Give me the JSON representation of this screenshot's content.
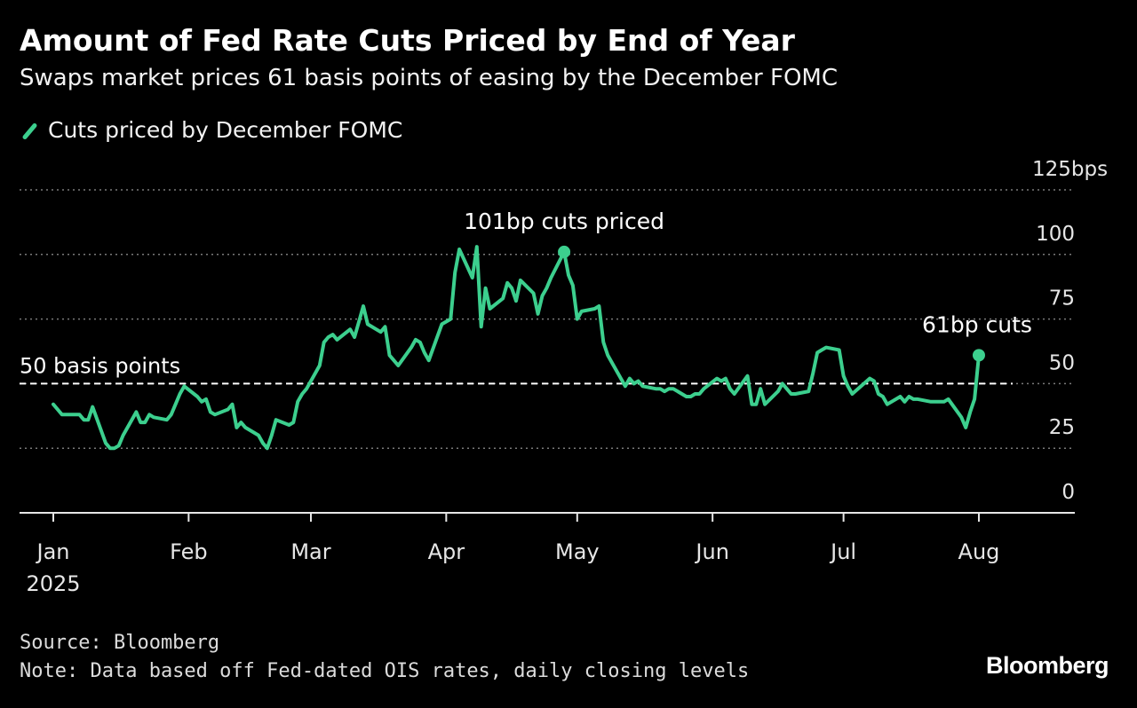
{
  "header": {
    "title": "Amount of Fed Rate Cuts Priced by End of Year",
    "subtitle": "Swaps market prices 61 basis points of easing by the December FOMC"
  },
  "legend": {
    "label": "Cuts priced by December FOMC"
  },
  "colors": {
    "background": "#000000",
    "series": "#3ccf8e",
    "grid": "#7a7a7a",
    "reference": "#ffffff",
    "text": "#ffffff"
  },
  "chart_data": {
    "type": "line",
    "x_axis": {
      "ticks": [
        "2025-01-01",
        "2025-02-01",
        "2025-03-01",
        "2025-04-01",
        "2025-05-01",
        "2025-06-01",
        "2025-07-01",
        "2025-08-01"
      ],
      "tick_labels": [
        "Jan",
        "Feb",
        "Mar",
        "Apr",
        "May",
        "Jun",
        "Jul",
        "Aug"
      ],
      "year_label": "2025",
      "range": [
        "2025-01-01",
        "2025-08-25"
      ]
    },
    "y_axis": {
      "ticks": [
        0,
        25,
        50,
        75,
        100,
        125
      ],
      "tick_labels": [
        "0",
        "25",
        "50",
        "75",
        "100",
        "125bps"
      ],
      "range": [
        0,
        125
      ],
      "grid": "dotted"
    },
    "reference_line": {
      "value": 50,
      "label": "50 basis points",
      "style": "dashed"
    },
    "annotations": [
      {
        "text": "101bp cuts priced",
        "date": "2025-04-28",
        "value": 101
      },
      {
        "text": "61bp cuts",
        "date": "2025-08-01",
        "value": 61
      }
    ],
    "series": [
      {
        "name": "Cuts priced by December FOMC",
        "points": [
          [
            "2025-01-01",
            42
          ],
          [
            "2025-01-02",
            40
          ],
          [
            "2025-01-03",
            38
          ],
          [
            "2025-01-06",
            38
          ],
          [
            "2025-01-07",
            38
          ],
          [
            "2025-01-08",
            36
          ],
          [
            "2025-01-09",
            36
          ],
          [
            "2025-01-10",
            41
          ],
          [
            "2025-01-13",
            27
          ],
          [
            "2025-01-14",
            25
          ],
          [
            "2025-01-15",
            25
          ],
          [
            "2025-01-16",
            26
          ],
          [
            "2025-01-17",
            30
          ],
          [
            "2025-01-20",
            39
          ],
          [
            "2025-01-21",
            35
          ],
          [
            "2025-01-22",
            35
          ],
          [
            "2025-01-23",
            38
          ],
          [
            "2025-01-24",
            37
          ],
          [
            "2025-01-27",
            36
          ],
          [
            "2025-01-28",
            38
          ],
          [
            "2025-01-29",
            42
          ],
          [
            "2025-01-30",
            46
          ],
          [
            "2025-01-31",
            49
          ],
          [
            "2025-02-03",
            45
          ],
          [
            "2025-02-04",
            43
          ],
          [
            "2025-02-05",
            44
          ],
          [
            "2025-02-06",
            39
          ],
          [
            "2025-02-07",
            38
          ],
          [
            "2025-02-10",
            40
          ],
          [
            "2025-02-11",
            42
          ],
          [
            "2025-02-12",
            33
          ],
          [
            "2025-02-13",
            35
          ],
          [
            "2025-02-14",
            33
          ],
          [
            "2025-02-17",
            30
          ],
          [
            "2025-02-18",
            27
          ],
          [
            "2025-02-19",
            25
          ],
          [
            "2025-02-20",
            30
          ],
          [
            "2025-02-21",
            36
          ],
          [
            "2025-02-24",
            34
          ],
          [
            "2025-02-25",
            35
          ],
          [
            "2025-02-26",
            43
          ],
          [
            "2025-02-27",
            46
          ],
          [
            "2025-02-28",
            48
          ],
          [
            "2025-03-03",
            57
          ],
          [
            "2025-03-04",
            66
          ],
          [
            "2025-03-05",
            68
          ],
          [
            "2025-03-06",
            69
          ],
          [
            "2025-03-07",
            67
          ],
          [
            "2025-03-10",
            71
          ],
          [
            "2025-03-11",
            68
          ],
          [
            "2025-03-12",
            74
          ],
          [
            "2025-03-13",
            80
          ],
          [
            "2025-03-14",
            73
          ],
          [
            "2025-03-17",
            70
          ],
          [
            "2025-03-18",
            72
          ],
          [
            "2025-03-19",
            61
          ],
          [
            "2025-03-20",
            59
          ],
          [
            "2025-03-21",
            57
          ],
          [
            "2025-03-24",
            64
          ],
          [
            "2025-03-25",
            67
          ],
          [
            "2025-03-26",
            66
          ],
          [
            "2025-03-27",
            62
          ],
          [
            "2025-03-28",
            59
          ],
          [
            "2025-03-31",
            73
          ],
          [
            "2025-04-01",
            74
          ],
          [
            "2025-04-02",
            75
          ],
          [
            "2025-04-03",
            93
          ],
          [
            "2025-04-04",
            102
          ],
          [
            "2025-04-07",
            91
          ],
          [
            "2025-04-08",
            103
          ],
          [
            "2025-04-09",
            72
          ],
          [
            "2025-04-10",
            87
          ],
          [
            "2025-04-11",
            79
          ],
          [
            "2025-04-14",
            83
          ],
          [
            "2025-04-15",
            89
          ],
          [
            "2025-04-16",
            87
          ],
          [
            "2025-04-17",
            82
          ],
          [
            "2025-04-18",
            90
          ],
          [
            "2025-04-21",
            85
          ],
          [
            "2025-04-22",
            77
          ],
          [
            "2025-04-23",
            84
          ],
          [
            "2025-04-24",
            87
          ],
          [
            "2025-04-25",
            91
          ],
          [
            "2025-04-28",
            101
          ],
          [
            "2025-04-29",
            92
          ],
          [
            "2025-04-30",
            88
          ],
          [
            "2025-05-01",
            75
          ],
          [
            "2025-05-02",
            78
          ],
          [
            "2025-05-05",
            79
          ],
          [
            "2025-05-06",
            80
          ],
          [
            "2025-05-07",
            66
          ],
          [
            "2025-05-08",
            61
          ],
          [
            "2025-05-09",
            58
          ],
          [
            "2025-05-12",
            49
          ],
          [
            "2025-05-13",
            52
          ],
          [
            "2025-05-14",
            50
          ],
          [
            "2025-05-15",
            51
          ],
          [
            "2025-05-16",
            49
          ],
          [
            "2025-05-19",
            48
          ],
          [
            "2025-05-20",
            48
          ],
          [
            "2025-05-21",
            47
          ],
          [
            "2025-05-22",
            48
          ],
          [
            "2025-05-23",
            48
          ],
          [
            "2025-05-26",
            45
          ],
          [
            "2025-05-27",
            45
          ],
          [
            "2025-05-28",
            46
          ],
          [
            "2025-05-29",
            46
          ],
          [
            "2025-05-30",
            48
          ],
          [
            "2025-06-02",
            52
          ],
          [
            "2025-06-03",
            51
          ],
          [
            "2025-06-04",
            52
          ],
          [
            "2025-06-05",
            48
          ],
          [
            "2025-06-06",
            46
          ],
          [
            "2025-06-09",
            53
          ],
          [
            "2025-06-10",
            42
          ],
          [
            "2025-06-11",
            42
          ],
          [
            "2025-06-12",
            48
          ],
          [
            "2025-06-13",
            42
          ],
          [
            "2025-06-16",
            47
          ],
          [
            "2025-06-17",
            50
          ],
          [
            "2025-06-18",
            48
          ],
          [
            "2025-06-19",
            46
          ],
          [
            "2025-06-20",
            46
          ],
          [
            "2025-06-23",
            47
          ],
          [
            "2025-06-24",
            54
          ],
          [
            "2025-06-25",
            62
          ],
          [
            "2025-06-26",
            63
          ],
          [
            "2025-06-27",
            64
          ],
          [
            "2025-06-30",
            63
          ],
          [
            "2025-07-01",
            53
          ],
          [
            "2025-07-02",
            49
          ],
          [
            "2025-07-03",
            46
          ],
          [
            "2025-07-07",
            52
          ],
          [
            "2025-07-08",
            51
          ],
          [
            "2025-07-09",
            46
          ],
          [
            "2025-07-10",
            45
          ],
          [
            "2025-07-11",
            42
          ],
          [
            "2025-07-14",
            45
          ],
          [
            "2025-07-15",
            43
          ],
          [
            "2025-07-16",
            45
          ],
          [
            "2025-07-17",
            44
          ],
          [
            "2025-07-18",
            44
          ],
          [
            "2025-07-21",
            43
          ],
          [
            "2025-07-22",
            43
          ],
          [
            "2025-07-23",
            43
          ],
          [
            "2025-07-24",
            43
          ],
          [
            "2025-07-25",
            44
          ],
          [
            "2025-07-28",
            37
          ],
          [
            "2025-07-29",
            33
          ],
          [
            "2025-07-30",
            39
          ],
          [
            "2025-07-31",
            44
          ],
          [
            "2025-08-01",
            61
          ]
        ]
      }
    ]
  },
  "footer": {
    "source": "Source: Bloomberg",
    "note": "Note: Data based off Fed-dated OIS rates, daily closing levels",
    "brand": "Bloomberg"
  }
}
